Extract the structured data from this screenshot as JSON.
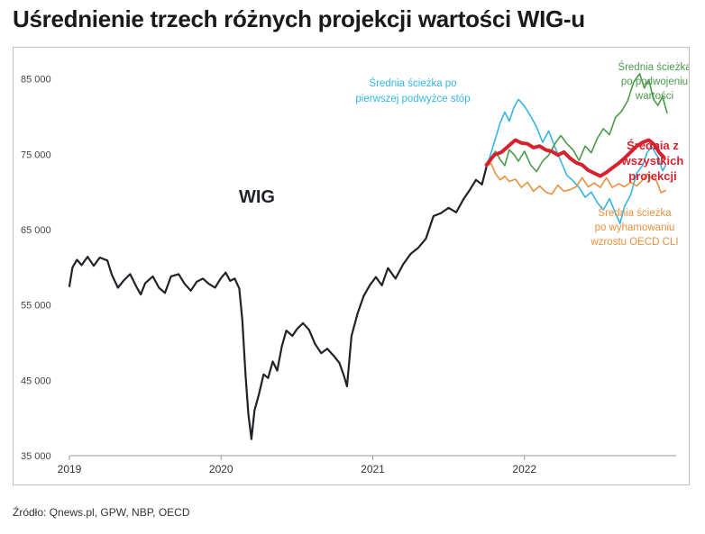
{
  "title": "Uśrednienie trzech różnych projekcji wartości WIG-u",
  "source": "Źródło: Qnews.pl, GPW, NBP, OECD",
  "chart_data": {
    "type": "line",
    "ylim": [
      35000,
      87000
    ],
    "xlim": [
      2019.0,
      2023.0
    ],
    "y_ticks": [
      35000,
      45000,
      55000,
      65000,
      75000,
      85000
    ],
    "y_tick_labels": [
      "35 000",
      "45 000",
      "55 000",
      "65 000",
      "75 000",
      "85 000"
    ],
    "x_ticks": [
      2019,
      2020,
      2021,
      2022
    ],
    "x_tick_labels": [
      "2019",
      "2020",
      "2021",
      "2022"
    ],
    "grid": false,
    "annotations": {
      "wig": "WIG",
      "blue": [
        "Średnia ścieżka po",
        "pierwszej podwyżce stóp"
      ],
      "green": [
        "Średnia ścieżka",
        "po podwojeniu",
        "wartości"
      ],
      "red": [
        "Średnia z",
        "wszystkich",
        "projekcji"
      ],
      "orange": [
        "Średnia ścieżka",
        "po wyhamowaniu",
        "wzrostu OECD CLI"
      ]
    },
    "series": [
      {
        "color": "#1f2328",
        "width": 2.2,
        "points": [
          [
            2019.0,
            57500
          ],
          [
            2019.02,
            60000
          ],
          [
            2019.05,
            61000
          ],
          [
            2019.08,
            60300
          ],
          [
            2019.12,
            61400
          ],
          [
            2019.16,
            60200
          ],
          [
            2019.2,
            61300
          ],
          [
            2019.25,
            60900
          ],
          [
            2019.28,
            59000
          ],
          [
            2019.32,
            57300
          ],
          [
            2019.36,
            58300
          ],
          [
            2019.4,
            59100
          ],
          [
            2019.44,
            57500
          ],
          [
            2019.47,
            56400
          ],
          [
            2019.5,
            57900
          ],
          [
            2019.55,
            58800
          ],
          [
            2019.59,
            57300
          ],
          [
            2019.63,
            56600
          ],
          [
            2019.67,
            58800
          ],
          [
            2019.72,
            59100
          ],
          [
            2019.76,
            57800
          ],
          [
            2019.8,
            56900
          ],
          [
            2019.84,
            58100
          ],
          [
            2019.88,
            58500
          ],
          [
            2019.92,
            57800
          ],
          [
            2019.96,
            57300
          ],
          [
            2020.0,
            58600
          ],
          [
            2020.03,
            59300
          ],
          [
            2020.06,
            58200
          ],
          [
            2020.09,
            58500
          ],
          [
            2020.12,
            57200
          ],
          [
            2020.14,
            53000
          ],
          [
            2020.16,
            46000
          ],
          [
            2020.18,
            40500
          ],
          [
            2020.2,
            37200
          ],
          [
            2020.22,
            41000
          ],
          [
            2020.25,
            43200
          ],
          [
            2020.28,
            45800
          ],
          [
            2020.31,
            45300
          ],
          [
            2020.34,
            47500
          ],
          [
            2020.37,
            46300
          ],
          [
            2020.4,
            49500
          ],
          [
            2020.43,
            51600
          ],
          [
            2020.47,
            50900
          ],
          [
            2020.5,
            51800
          ],
          [
            2020.54,
            52600
          ],
          [
            2020.58,
            51700
          ],
          [
            2020.62,
            49800
          ],
          [
            2020.66,
            48600
          ],
          [
            2020.7,
            49200
          ],
          [
            2020.74,
            48300
          ],
          [
            2020.78,
            47300
          ],
          [
            2020.81,
            45600
          ],
          [
            2020.83,
            44200
          ],
          [
            2020.86,
            50900
          ],
          [
            2020.9,
            53900
          ],
          [
            2020.94,
            56200
          ],
          [
            2020.98,
            57600
          ],
          [
            2021.02,
            58700
          ],
          [
            2021.06,
            57600
          ],
          [
            2021.1,
            59900
          ],
          [
            2021.15,
            58500
          ],
          [
            2021.2,
            60400
          ],
          [
            2021.25,
            61800
          ],
          [
            2021.3,
            62600
          ],
          [
            2021.35,
            63800
          ],
          [
            2021.4,
            66800
          ],
          [
            2021.45,
            67200
          ],
          [
            2021.5,
            67900
          ],
          [
            2021.55,
            67300
          ],
          [
            2021.6,
            69100
          ],
          [
            2021.64,
            70300
          ],
          [
            2021.68,
            71600
          ],
          [
            2021.72,
            71000
          ],
          [
            2021.75,
            73400
          ]
        ]
      },
      {
        "color": "#35b5e5",
        "width": 1.6,
        "points": [
          [
            2021.75,
            73400
          ],
          [
            2021.78,
            75200
          ],
          [
            2021.81,
            77200
          ],
          [
            2021.84,
            79200
          ],
          [
            2021.87,
            80600
          ],
          [
            2021.9,
            79400
          ],
          [
            2021.93,
            81200
          ],
          [
            2021.96,
            82300
          ],
          [
            2022.0,
            81400
          ],
          [
            2022.04,
            80100
          ],
          [
            2022.08,
            78600
          ],
          [
            2022.12,
            76600
          ],
          [
            2022.16,
            78100
          ],
          [
            2022.2,
            76000
          ],
          [
            2022.24,
            74100
          ],
          [
            2022.28,
            72200
          ],
          [
            2022.32,
            71500
          ],
          [
            2022.36,
            70600
          ],
          [
            2022.4,
            69300
          ],
          [
            2022.44,
            70000
          ],
          [
            2022.48,
            68600
          ],
          [
            2022.52,
            67600
          ],
          [
            2022.56,
            69100
          ],
          [
            2022.6,
            67200
          ],
          [
            2022.63,
            65800
          ],
          [
            2022.66,
            68100
          ],
          [
            2022.7,
            69600
          ],
          [
            2022.74,
            72500
          ],
          [
            2022.78,
            73600
          ],
          [
            2022.81,
            75300
          ],
          [
            2022.84,
            76000
          ],
          [
            2022.88,
            74600
          ],
          [
            2022.91,
            72800
          ],
          [
            2022.93,
            73500
          ]
        ]
      },
      {
        "color": "#4a9a4a",
        "width": 1.6,
        "points": [
          [
            2021.75,
            73400
          ],
          [
            2021.78,
            74600
          ],
          [
            2021.81,
            75400
          ],
          [
            2021.84,
            74300
          ],
          [
            2021.87,
            73500
          ],
          [
            2021.9,
            75600
          ],
          [
            2021.93,
            75000
          ],
          [
            2021.96,
            74100
          ],
          [
            2022.0,
            75400
          ],
          [
            2022.04,
            73600
          ],
          [
            2022.08,
            72700
          ],
          [
            2022.12,
            74100
          ],
          [
            2022.16,
            74900
          ],
          [
            2022.2,
            76400
          ],
          [
            2022.24,
            77500
          ],
          [
            2022.28,
            76400
          ],
          [
            2022.32,
            75600
          ],
          [
            2022.36,
            74200
          ],
          [
            2022.4,
            76100
          ],
          [
            2022.44,
            75200
          ],
          [
            2022.48,
            77100
          ],
          [
            2022.52,
            78400
          ],
          [
            2022.56,
            77600
          ],
          [
            2022.6,
            79900
          ],
          [
            2022.64,
            80700
          ],
          [
            2022.68,
            82100
          ],
          [
            2022.72,
            84600
          ],
          [
            2022.76,
            85700
          ],
          [
            2022.79,
            83800
          ],
          [
            2022.82,
            84900
          ],
          [
            2022.85,
            82300
          ],
          [
            2022.88,
            81500
          ],
          [
            2022.91,
            82700
          ],
          [
            2022.94,
            80500
          ]
        ]
      },
      {
        "color": "#e8913f",
        "width": 1.6,
        "points": [
          [
            2021.75,
            73400
          ],
          [
            2021.78,
            73800
          ],
          [
            2021.81,
            72400
          ],
          [
            2021.84,
            71600
          ],
          [
            2021.87,
            72100
          ],
          [
            2021.9,
            71400
          ],
          [
            2021.94,
            71700
          ],
          [
            2021.98,
            70600
          ],
          [
            2022.02,
            71300
          ],
          [
            2022.06,
            70100
          ],
          [
            2022.1,
            70800
          ],
          [
            2022.14,
            70000
          ],
          [
            2022.18,
            69700
          ],
          [
            2022.22,
            70900
          ],
          [
            2022.26,
            70100
          ],
          [
            2022.3,
            70300
          ],
          [
            2022.34,
            70700
          ],
          [
            2022.38,
            71900
          ],
          [
            2022.42,
            70700
          ],
          [
            2022.46,
            71200
          ],
          [
            2022.5,
            70600
          ],
          [
            2022.54,
            71900
          ],
          [
            2022.58,
            70600
          ],
          [
            2022.62,
            71100
          ],
          [
            2022.66,
            70700
          ],
          [
            2022.7,
            71300
          ],
          [
            2022.74,
            70800
          ],
          [
            2022.78,
            71600
          ],
          [
            2022.81,
            72400
          ],
          [
            2022.84,
            71800
          ],
          [
            2022.87,
            71500
          ],
          [
            2022.9,
            69900
          ],
          [
            2022.93,
            70200
          ]
        ]
      },
      {
        "color": "#d6222e",
        "width": 4,
        "points": [
          [
            2021.75,
            73600
          ],
          [
            2021.8,
            74900
          ],
          [
            2021.85,
            75300
          ],
          [
            2021.9,
            76200
          ],
          [
            2021.94,
            76900
          ],
          [
            2021.98,
            76500
          ],
          [
            2022.02,
            76400
          ],
          [
            2022.06,
            75900
          ],
          [
            2022.1,
            76100
          ],
          [
            2022.14,
            75600
          ],
          [
            2022.18,
            75400
          ],
          [
            2022.22,
            74900
          ],
          [
            2022.26,
            75300
          ],
          [
            2022.3,
            74500
          ],
          [
            2022.34,
            73900
          ],
          [
            2022.38,
            73600
          ],
          [
            2022.42,
            72900
          ],
          [
            2022.46,
            72500
          ],
          [
            2022.5,
            72100
          ],
          [
            2022.54,
            72600
          ],
          [
            2022.58,
            73200
          ],
          [
            2022.62,
            73800
          ],
          [
            2022.66,
            74500
          ],
          [
            2022.7,
            75300
          ],
          [
            2022.74,
            76100
          ],
          [
            2022.78,
            76600
          ],
          [
            2022.82,
            76900
          ],
          [
            2022.86,
            76200
          ],
          [
            2022.89,
            75200
          ],
          [
            2022.92,
            74600
          ]
        ]
      }
    ]
  }
}
